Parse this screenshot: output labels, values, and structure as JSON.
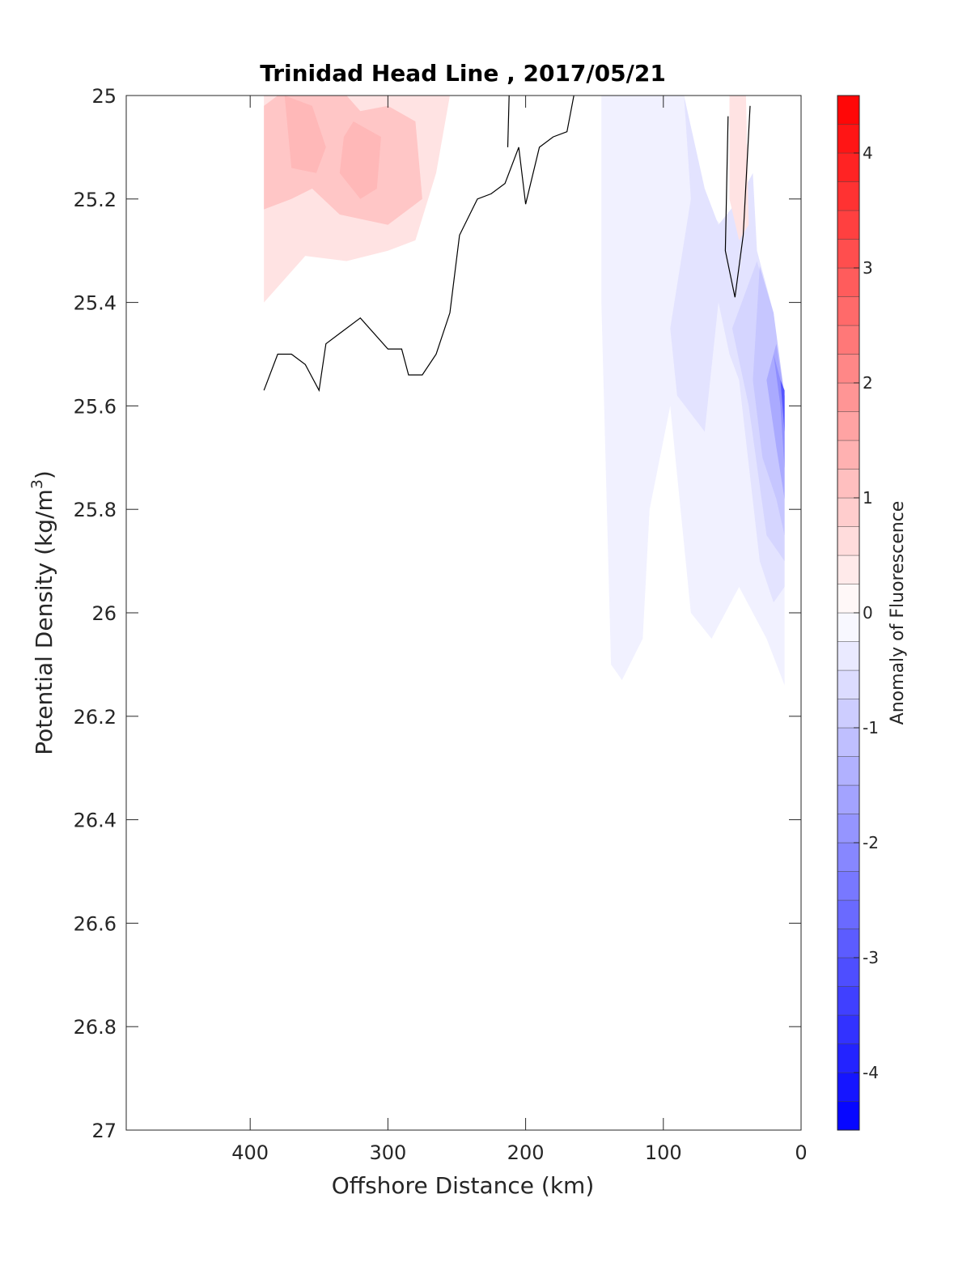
{
  "chart_data": {
    "type": "heatmap",
    "title": "Trinidad Head Line , 2017/05/21",
    "xlabel": "Offshore Distance (km)",
    "ylabel_main": "Potential Density (kg/m",
    "ylabel_sup": "3",
    "ylabel_close": ")",
    "colorbar_label": "Anomaly of Fluorescence",
    "xlim": [
      490,
      0
    ],
    "ylim": [
      25,
      27
    ],
    "x_reversed": true,
    "y_reversed": true,
    "x_ticks": [
      "400",
      "300",
      "200",
      "100",
      "0"
    ],
    "x_tick_values": [
      400,
      300,
      200,
      100,
      0
    ],
    "y_ticks": [
      "25",
      "25.2",
      "25.4",
      "25.6",
      "25.8",
      "26",
      "26.2",
      "26.4",
      "26.6",
      "26.8",
      "27"
    ],
    "y_tick_values": [
      25,
      25.2,
      25.4,
      25.6,
      25.8,
      26,
      26.2,
      26.4,
      26.6,
      26.8,
      27
    ],
    "colorbar_range": [
      -4.5,
      4.5
    ],
    "colorbar_step": 0.25,
    "colorbar_ticks": [
      "-4",
      "-3",
      "-2",
      "-1",
      "0",
      "1",
      "2",
      "3",
      "4"
    ],
    "colorbar_tick_values": [
      -4,
      -3,
      -2,
      -1,
      0,
      1,
      2,
      3,
      4
    ],
    "colors": {
      "positive": "#ff0000",
      "negative": "#0000ff",
      "zero": "#ffffff"
    },
    "regions": [
      {
        "value": 0.5,
        "points": [
          [
            390,
            25.0
          ],
          [
            255,
            25.0
          ],
          [
            265,
            25.15
          ],
          [
            280,
            25.28
          ],
          [
            300,
            25.3
          ],
          [
            330,
            25.32
          ],
          [
            360,
            25.31
          ],
          [
            390,
            25.4
          ]
        ]
      },
      {
        "value": 1.0,
        "points": [
          [
            380,
            25.0
          ],
          [
            330,
            25.0
          ],
          [
            320,
            25.03
          ],
          [
            300,
            25.02
          ],
          [
            280,
            25.05
          ],
          [
            275,
            25.2
          ],
          [
            300,
            25.25
          ],
          [
            335,
            25.23
          ],
          [
            355,
            25.18
          ],
          [
            370,
            25.2
          ],
          [
            390,
            25.22
          ],
          [
            390,
            25.02
          ]
        ]
      },
      {
        "value": 1.25,
        "points": [
          [
            375,
            25.0
          ],
          [
            355,
            25.02
          ],
          [
            345,
            25.1
          ],
          [
            352,
            25.15
          ],
          [
            370,
            25.14
          ]
        ]
      },
      {
        "value": 1.25,
        "points": [
          [
            325,
            25.05
          ],
          [
            305,
            25.08
          ],
          [
            308,
            25.18
          ],
          [
            320,
            25.2
          ],
          [
            335,
            25.15
          ],
          [
            332,
            25.08
          ]
        ]
      },
      {
        "value": -0.25,
        "points": [
          [
            145,
            25.0
          ],
          [
            85,
            25.0
          ],
          [
            75,
            25.2
          ],
          [
            48,
            25.28
          ],
          [
            40,
            25.38
          ],
          [
            30,
            25.5
          ],
          [
            15,
            25.6
          ],
          [
            12,
            25.85
          ],
          [
            12,
            26.14
          ],
          [
            25,
            26.05
          ],
          [
            45,
            25.95
          ],
          [
            65,
            26.05
          ],
          [
            80,
            26.0
          ],
          [
            95,
            25.6
          ],
          [
            110,
            25.8
          ],
          [
            115,
            26.05
          ],
          [
            130,
            26.13
          ],
          [
            138,
            26.1
          ],
          [
            145,
            25.4
          ]
        ]
      },
      {
        "value": -0.5,
        "points": [
          [
            85,
            25.0
          ],
          [
            80,
            25.2
          ],
          [
            95,
            25.45
          ],
          [
            90,
            25.58
          ],
          [
            70,
            25.65
          ],
          [
            60,
            25.4
          ],
          [
            52,
            25.5
          ],
          [
            45,
            25.55
          ],
          [
            30,
            25.9
          ],
          [
            20,
            25.98
          ],
          [
            12,
            25.95
          ],
          [
            12,
            25.6
          ],
          [
            20,
            25.42
          ],
          [
            32,
            25.3
          ],
          [
            35,
            25.15
          ],
          [
            45,
            25.2
          ],
          [
            60,
            25.25
          ],
          [
            70,
            25.18
          ]
        ]
      },
      {
        "value": -0.75,
        "points": [
          [
            50,
            25.45
          ],
          [
            38,
            25.6
          ],
          [
            25,
            25.85
          ],
          [
            12,
            25.9
          ],
          [
            12,
            25.6
          ],
          [
            20,
            25.44
          ],
          [
            32,
            25.32
          ]
        ]
      },
      {
        "value": -1.0,
        "points": [
          [
            35,
            25.55
          ],
          [
            28,
            25.7
          ],
          [
            18,
            25.78
          ],
          [
            12,
            25.85
          ],
          [
            12,
            25.58
          ],
          [
            20,
            25.42
          ],
          [
            30,
            25.33
          ]
        ]
      },
      {
        "value": -1.5,
        "points": [
          [
            25,
            25.55
          ],
          [
            18,
            25.68
          ],
          [
            12,
            25.78
          ],
          [
            12,
            25.58
          ],
          [
            18,
            25.48
          ]
        ]
      },
      {
        "value": -2.0,
        "points": [
          [
            20,
            25.5
          ],
          [
            15,
            25.6
          ],
          [
            12,
            25.72
          ],
          [
            12,
            25.58
          ]
        ]
      },
      {
        "value": -3.0,
        "points": [
          [
            15,
            25.55
          ],
          [
            12,
            25.65
          ],
          [
            12,
            25.57
          ]
        ]
      },
      {
        "value": 0.5,
        "points": [
          [
            52,
            25.0
          ],
          [
            40,
            25.0
          ],
          [
            38,
            25.25
          ],
          [
            45,
            25.28
          ],
          [
            52,
            25.2
          ]
        ]
      }
    ],
    "zero_contours": [
      [
        [
          390,
          25.57
        ],
        [
          380,
          25.5
        ],
        [
          370,
          25.5
        ],
        [
          360,
          25.52
        ],
        [
          350,
          25.57
        ],
        [
          345,
          25.48
        ],
        [
          335,
          25.46
        ],
        [
          320,
          25.43
        ],
        [
          300,
          25.49
        ],
        [
          290,
          25.49
        ],
        [
          285,
          25.54
        ],
        [
          275,
          25.54
        ],
        [
          265,
          25.5
        ],
        [
          255,
          25.42
        ],
        [
          248,
          25.27
        ],
        [
          235,
          25.2
        ],
        [
          225,
          25.19
        ],
        [
          215,
          25.17
        ],
        [
          205,
          25.1
        ],
        [
          200,
          25.21
        ],
        [
          190,
          25.1
        ],
        [
          180,
          25.08
        ],
        [
          170,
          25.07
        ],
        [
          165,
          25.0
        ]
      ],
      [
        [
          212,
          25.0
        ],
        [
          213,
          25.1
        ]
      ],
      [
        [
          53,
          25.04
        ],
        [
          55,
          25.3
        ],
        [
          48,
          25.39
        ],
        [
          42,
          25.27
        ],
        [
          37,
          25.02
        ]
      ]
    ]
  }
}
